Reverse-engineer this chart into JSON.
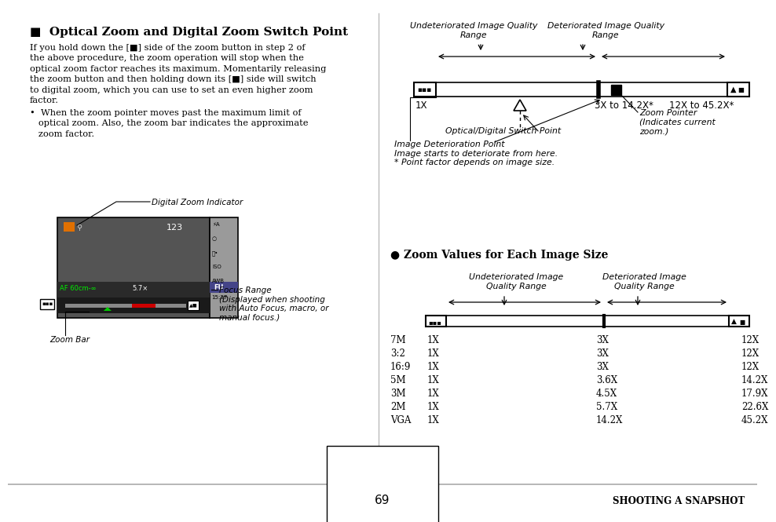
{
  "bg_color": "#ffffff",
  "page_number": "69",
  "footer_text": "SHOOTING A SNAPSHOT",
  "title": "■  Optical Zoom and Digital Zoom Switch Point",
  "body_lines": [
    "If you hold down the [■] side of the zoom button in step 2 of",
    "the above procedure, the zoom operation will stop when the",
    "optical zoom factor reaches its maximum. Momentarily releasing",
    "the zoom button and then holding down its [■] side will switch",
    "to digital zoom, which you can use to set an even higher zoom",
    "factor."
  ],
  "bullet_lines": [
    "•  When the zoom pointer moves past the maximum limit of",
    "   optical zoom. Also, the zoom bar indicates the approximate",
    "   zoom factor."
  ],
  "d1_label_undet": "Undeteriorated Image Quality\nRange",
  "d1_label_det": "Deteriorated Image Quality\nRange",
  "d1_1x": "1X",
  "d1_switch": "3X to 14.2X*",
  "d1_digital": "12X to 45.2X*",
  "d1_switch_point_label": "Optical/Digital Switch Point",
  "d1_zoom_pointer_label": "Zoom Pointer\n(Indicates current\nzoom.)",
  "d1_deterioration_label": "Image Deterioration Point\nImage starts to deteriorate from here.\n* Point factor depends on image size.",
  "s2_title": "● Zoom Values for Each Image Size",
  "d2_label_undet": "Undeteriorated Image\nQuality Range",
  "d2_label_det": "Deteriorated Image\nQuality Range",
  "table_rows": [
    [
      "7M",
      "1X",
      "3X",
      "12X"
    ],
    [
      "3:2",
      "1X",
      "3X",
      "12X"
    ],
    [
      "16:9",
      "1X",
      "3X",
      "12X"
    ],
    [
      "5M",
      "1X",
      "3.6X",
      "14.2X"
    ],
    [
      "3M",
      "1X",
      "4.5X",
      "17.9X"
    ],
    [
      "2M",
      "1X",
      "5.7X",
      "22.6X"
    ],
    [
      "VGA",
      "1X",
      "14.2X",
      "45.2X"
    ]
  ]
}
